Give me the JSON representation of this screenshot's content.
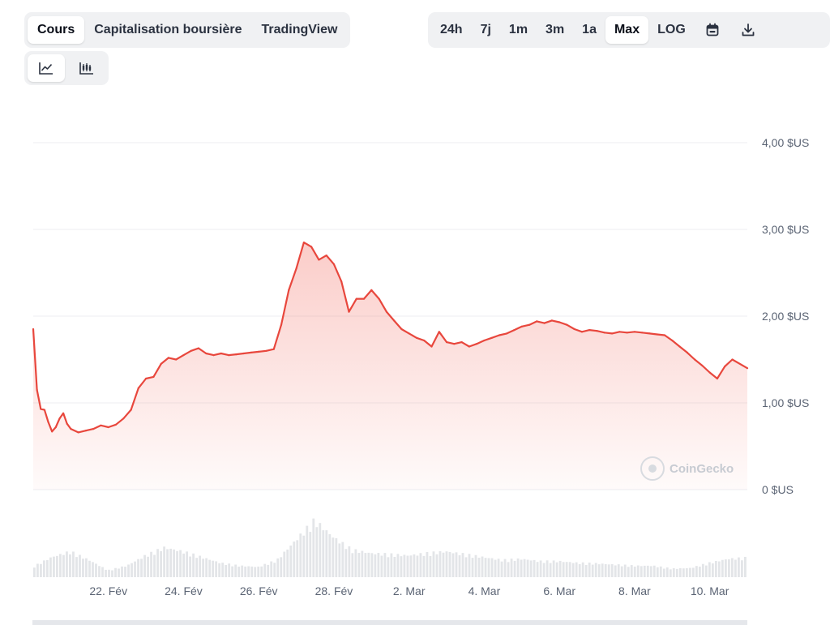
{
  "tabs": [
    {
      "label": "Cours",
      "active": true
    },
    {
      "label": "Capitalisation boursière",
      "active": false
    },
    {
      "label": "TradingView",
      "active": false
    }
  ],
  "ranges": [
    {
      "label": "24h",
      "active": false
    },
    {
      "label": "7j",
      "active": false
    },
    {
      "label": "1m",
      "active": false
    },
    {
      "label": "3m",
      "active": false
    },
    {
      "label": "1a",
      "active": false
    },
    {
      "label": "Max",
      "active": true
    },
    {
      "label": "LOG",
      "active": false
    }
  ],
  "tool_icons": [
    "calendar-icon",
    "download-icon"
  ],
  "chart_types": [
    {
      "icon": "line-chart-icon",
      "active": true
    },
    {
      "icon": "candlestick-chart-icon",
      "active": false
    }
  ],
  "watermark": "CoinGecko",
  "colors": {
    "line": "#e8473d",
    "grid": "#eceef1",
    "volume": "#e3e5e8",
    "text": "#5b6474"
  },
  "chart_data": {
    "type": "area",
    "title": "",
    "xlabel": "",
    "ylabel": "",
    "ylim": [
      0,
      4
    ],
    "y_ticks": [
      {
        "value": 0,
        "label": "0 $US"
      },
      {
        "value": 1,
        "label": "1,00 $US"
      },
      {
        "value": 2,
        "label": "2,00 $US"
      },
      {
        "value": 3,
        "label": "3,00 $US"
      },
      {
        "value": 4,
        "label": "4,00 $US"
      }
    ],
    "xlim": [
      20.0,
      39.0
    ],
    "x_ticks": [
      {
        "day": 22,
        "label": "22. Fév"
      },
      {
        "day": 24,
        "label": "24. Fév"
      },
      {
        "day": 26,
        "label": "26. Fév"
      },
      {
        "day": 28,
        "label": "28. Fév"
      },
      {
        "day": 30,
        "label": "2. Mar"
      },
      {
        "day": 32,
        "label": "4. Mar"
      },
      {
        "day": 34,
        "label": "6. Mar"
      },
      {
        "day": 36,
        "label": "8. Mar"
      },
      {
        "day": 38,
        "label": "10. Mar"
      }
    ],
    "grid": true,
    "legend": "none",
    "series": [
      {
        "x": [
          20.0,
          20.1,
          20.2,
          20.3,
          20.4,
          20.5,
          20.6,
          20.7,
          20.8,
          20.9,
          21.0,
          21.2,
          21.4,
          21.6,
          21.8,
          22.0,
          22.2,
          22.4,
          22.6,
          22.8,
          23.0,
          23.2,
          23.4,
          23.6,
          23.8,
          24.0,
          24.2,
          24.4,
          24.6,
          24.8,
          25.0,
          25.2,
          25.4,
          25.6,
          25.8,
          26.0,
          26.2,
          26.4,
          26.6,
          26.8,
          27.0,
          27.2,
          27.4,
          27.6,
          27.8,
          28.0,
          28.2,
          28.4,
          28.6,
          28.8,
          29.0,
          29.2,
          29.4,
          29.6,
          29.8,
          30.0,
          30.2,
          30.4,
          30.6,
          30.8,
          31.0,
          31.2,
          31.4,
          31.6,
          31.8,
          32.0,
          32.2,
          32.4,
          32.6,
          32.8,
          33.0,
          33.2,
          33.4,
          33.6,
          33.8,
          34.0,
          34.2,
          34.4,
          34.6,
          34.8,
          35.0,
          35.2,
          35.4,
          35.6,
          35.8,
          36.0,
          36.2,
          36.4,
          36.6,
          36.8,
          37.0,
          37.2,
          37.4,
          37.6,
          37.8,
          38.0,
          38.2,
          38.4,
          38.6,
          39.0
        ],
        "values": [
          1.85,
          1.15,
          0.93,
          0.92,
          0.78,
          0.67,
          0.72,
          0.82,
          0.88,
          0.76,
          0.7,
          0.66,
          0.68,
          0.7,
          0.74,
          0.72,
          0.75,
          0.82,
          0.92,
          1.17,
          1.28,
          1.3,
          1.45,
          1.52,
          1.5,
          1.55,
          1.6,
          1.63,
          1.57,
          1.55,
          1.57,
          1.55,
          1.56,
          1.57,
          1.58,
          1.59,
          1.6,
          1.62,
          1.9,
          2.3,
          2.55,
          2.85,
          2.8,
          2.65,
          2.7,
          2.6,
          2.4,
          2.05,
          2.2,
          2.2,
          2.3,
          2.2,
          2.05,
          1.95,
          1.85,
          1.8,
          1.75,
          1.72,
          1.65,
          1.82,
          1.7,
          1.68,
          1.7,
          1.65,
          1.68,
          1.72,
          1.75,
          1.78,
          1.8,
          1.84,
          1.88,
          1.9,
          1.94,
          1.92,
          1.95,
          1.93,
          1.9,
          1.85,
          1.82,
          1.84,
          1.83,
          1.81,
          1.8,
          1.82,
          1.81,
          1.82,
          1.81,
          1.8,
          1.79,
          1.78,
          1.72,
          1.65,
          1.58,
          1.5,
          1.43,
          1.35,
          1.28,
          1.42,
          1.5,
          1.4
        ]
      }
    ],
    "volume": {
      "x": [
        20.0,
        20.5,
        21.0,
        21.5,
        22.0,
        22.5,
        23.0,
        23.5,
        24.0,
        24.5,
        25.0,
        25.5,
        26.0,
        26.5,
        27.0,
        27.5,
        28.0,
        28.5,
        29.0,
        29.5,
        30.0,
        30.5,
        31.0,
        31.5,
        32.0,
        32.5,
        33.0,
        33.5,
        34.0,
        34.5,
        35.0,
        35.5,
        36.0,
        36.5,
        37.0,
        37.5,
        38.0,
        38.5,
        39.0
      ],
      "values": [
        0.18,
        0.35,
        0.45,
        0.3,
        0.12,
        0.2,
        0.38,
        0.52,
        0.45,
        0.35,
        0.25,
        0.2,
        0.18,
        0.3,
        0.65,
        1.0,
        0.7,
        0.48,
        0.42,
        0.4,
        0.38,
        0.42,
        0.45,
        0.4,
        0.35,
        0.3,
        0.32,
        0.28,
        0.28,
        0.25,
        0.24,
        0.22,
        0.2,
        0.2,
        0.15,
        0.16,
        0.25,
        0.32,
        0.34
      ]
    }
  }
}
